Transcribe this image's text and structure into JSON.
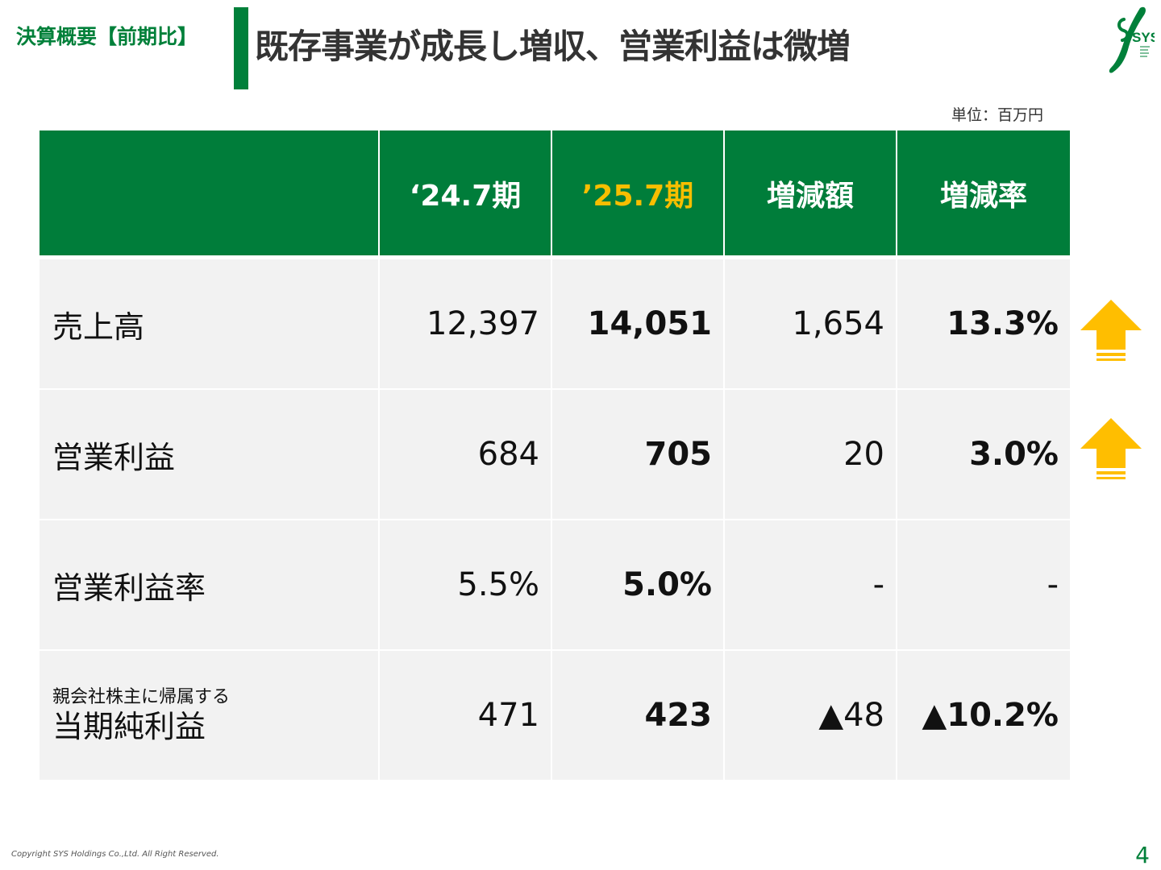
{
  "header": {
    "section_label": "決算概要【前期比】",
    "title": "既存事業が成長し増収、営業利益は微増",
    "logo_text": "SYS"
  },
  "unit_label": "単位：百万円",
  "table": {
    "columns": [
      "",
      "‘24.7期",
      "’25.7期",
      "増減額",
      "増減率"
    ],
    "rows": [
      {
        "label": "売上高",
        "prev": "12,397",
        "curr": "14,051",
        "diff": "1,654",
        "rate": "13.3%",
        "trend": "up"
      },
      {
        "label": "営業利益",
        "prev": "684",
        "curr": "705",
        "diff": "20",
        "rate": "3.0%",
        "trend": "up"
      },
      {
        "label": "営業利益率",
        "prev": "5.5%",
        "curr": "5.0%",
        "diff": "-",
        "rate": "-",
        "trend": "none"
      },
      {
        "sublabel": "親会社株主に帰属する",
        "label": "当期純利益",
        "prev": "471",
        "curr": "423",
        "diff": "▲48",
        "rate": "▲10.2%",
        "trend": "none"
      }
    ]
  },
  "colors": {
    "brand_green": "#00803a",
    "highlight_yellow": "#f7be00",
    "arrow_yellow": "#ffbe00"
  },
  "icons": {
    "up_arrow": "up-arrow-icon",
    "logo": "sys-logo-icon"
  },
  "footer": {
    "copyright": "Copyright  SYS Holdings Co.,Ltd. All Right Reserved.",
    "page_number": "4"
  }
}
